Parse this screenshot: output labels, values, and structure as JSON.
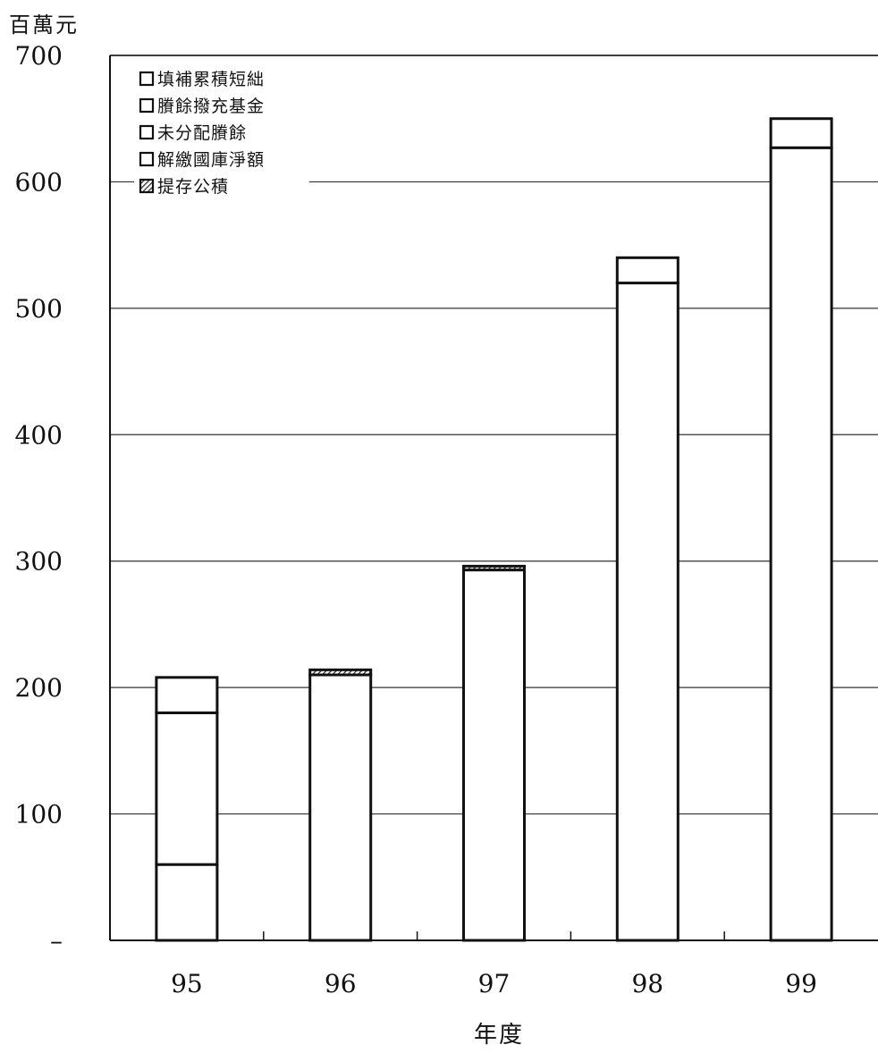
{
  "chart_data": {
    "type": "bar",
    "stacked": true,
    "unit_label": "百萬元",
    "xlabel": "年度",
    "ylabel": "",
    "ylim": [
      0,
      700
    ],
    "yticks": [
      {
        "value": 0,
        "label": "–"
      },
      {
        "value": 100,
        "label": "100"
      },
      {
        "value": 200,
        "label": "200"
      },
      {
        "value": 300,
        "label": "300"
      },
      {
        "value": 400,
        "label": "400"
      },
      {
        "value": 500,
        "label": "500"
      },
      {
        "value": 600,
        "label": "600"
      },
      {
        "value": 700,
        "label": "700"
      }
    ],
    "categories": [
      "95",
      "96",
      "97",
      "98",
      "99"
    ],
    "grid": true,
    "legend_position": "top-left",
    "series": [
      {
        "name": "填補累積短絀",
        "pattern": "plain",
        "values": [
          0,
          0,
          0,
          0,
          0
        ]
      },
      {
        "name": "賸餘撥充基金",
        "pattern": "plain",
        "values": [
          0,
          0,
          0,
          0,
          0
        ]
      },
      {
        "name": "未分配賸餘",
        "pattern": "plain",
        "values": [
          60,
          0,
          0,
          0,
          0
        ]
      },
      {
        "name": "解繳國庫淨額",
        "pattern": "plain",
        "values": [
          120,
          210,
          293,
          520,
          627
        ]
      },
      {
        "name": "提存公積",
        "pattern": "hatched",
        "values": [
          28,
          4,
          3,
          20,
          23
        ]
      }
    ]
  }
}
